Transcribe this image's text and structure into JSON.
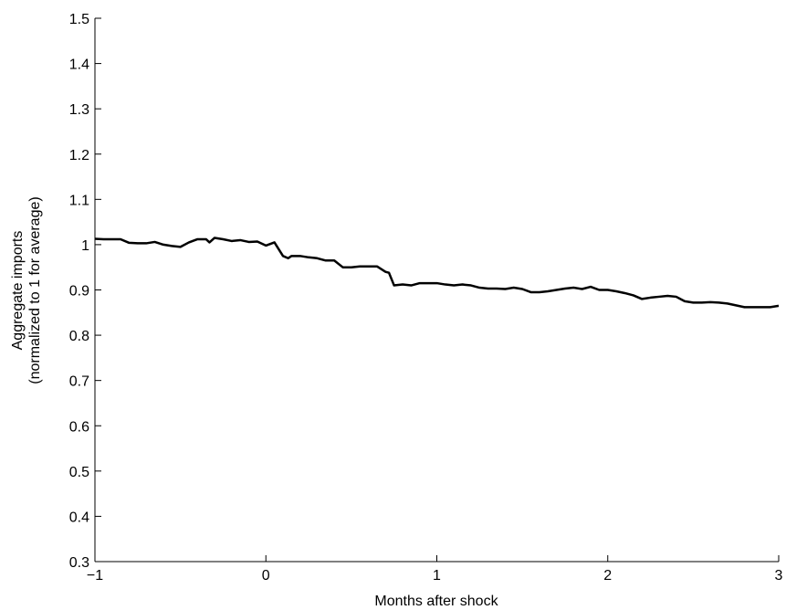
{
  "chart_data": {
    "type": "line",
    "xlabel": "Months after shock",
    "ylabel": [
      "Aggregate imports",
      "(normalized to 1 for average)"
    ],
    "x": [
      -1,
      -0.95,
      -0.9,
      -0.85,
      -0.8,
      -0.75,
      -0.7,
      -0.65,
      -0.6,
      -0.55,
      -0.5,
      -0.45,
      -0.4,
      -0.35,
      -0.33,
      -0.3,
      -0.25,
      -0.2,
      -0.15,
      -0.1,
      -0.05,
      0,
      0.05,
      0.1,
      0.13,
      0.15,
      0.2,
      0.25,
      0.3,
      0.35,
      0.4,
      0.45,
      0.5,
      0.55,
      0.6,
      0.65,
      0.7,
      0.72,
      0.75,
      0.8,
      0.85,
      0.9,
      0.95,
      1,
      1.05,
      1.1,
      1.15,
      1.2,
      1.25,
      1.3,
      1.35,
      1.4,
      1.45,
      1.5,
      1.55,
      1.6,
      1.65,
      1.7,
      1.75,
      1.8,
      1.85,
      1.9,
      1.95,
      2,
      2.05,
      2.1,
      2.15,
      2.2,
      2.25,
      2.3,
      2.35,
      2.4,
      2.45,
      2.5,
      2.55,
      2.6,
      2.65,
      2.7,
      2.75,
      2.8,
      2.85,
      2.9,
      2.95,
      3
    ],
    "series": [
      {
        "color": "#000000",
        "values": [
          1.013,
          1.012,
          1.012,
          1.012,
          1.004,
          1.003,
          1.003,
          1.006,
          1.0,
          0.997,
          0.995,
          1.005,
          1.012,
          1.012,
          1.005,
          1.015,
          1.012,
          1.008,
          1.01,
          1.006,
          1.007,
          0.998,
          1.005,
          0.975,
          0.97,
          0.975,
          0.975,
          0.972,
          0.97,
          0.965,
          0.965,
          0.95,
          0.95,
          0.952,
          0.952,
          0.952,
          0.94,
          0.938,
          0.91,
          0.912,
          0.91,
          0.915,
          0.915,
          0.915,
          0.912,
          0.91,
          0.912,
          0.91,
          0.905,
          0.903,
          0.903,
          0.902,
          0.905,
          0.902,
          0.895,
          0.895,
          0.897,
          0.9,
          0.903,
          0.905,
          0.902,
          0.907,
          0.9,
          0.9,
          0.897,
          0.893,
          0.888,
          0.88,
          0.883,
          0.885,
          0.887,
          0.885,
          0.875,
          0.872,
          0.872,
          0.873,
          0.872,
          0.87,
          0.866,
          0.862,
          0.862,
          0.862,
          0.862,
          0.865
        ]
      }
    ],
    "xlim": [
      -1,
      3
    ],
    "xticks": [
      {
        "value": -1,
        "label": "−1"
      },
      0,
      1,
      2,
      3
    ],
    "ylim": [
      0.3,
      1.5
    ],
    "yticks": [
      0.3,
      0.4,
      0.5,
      0.6,
      0.7,
      0.8,
      0.9,
      1,
      1.1,
      1.2,
      1.3,
      1.4,
      1.5
    ]
  }
}
